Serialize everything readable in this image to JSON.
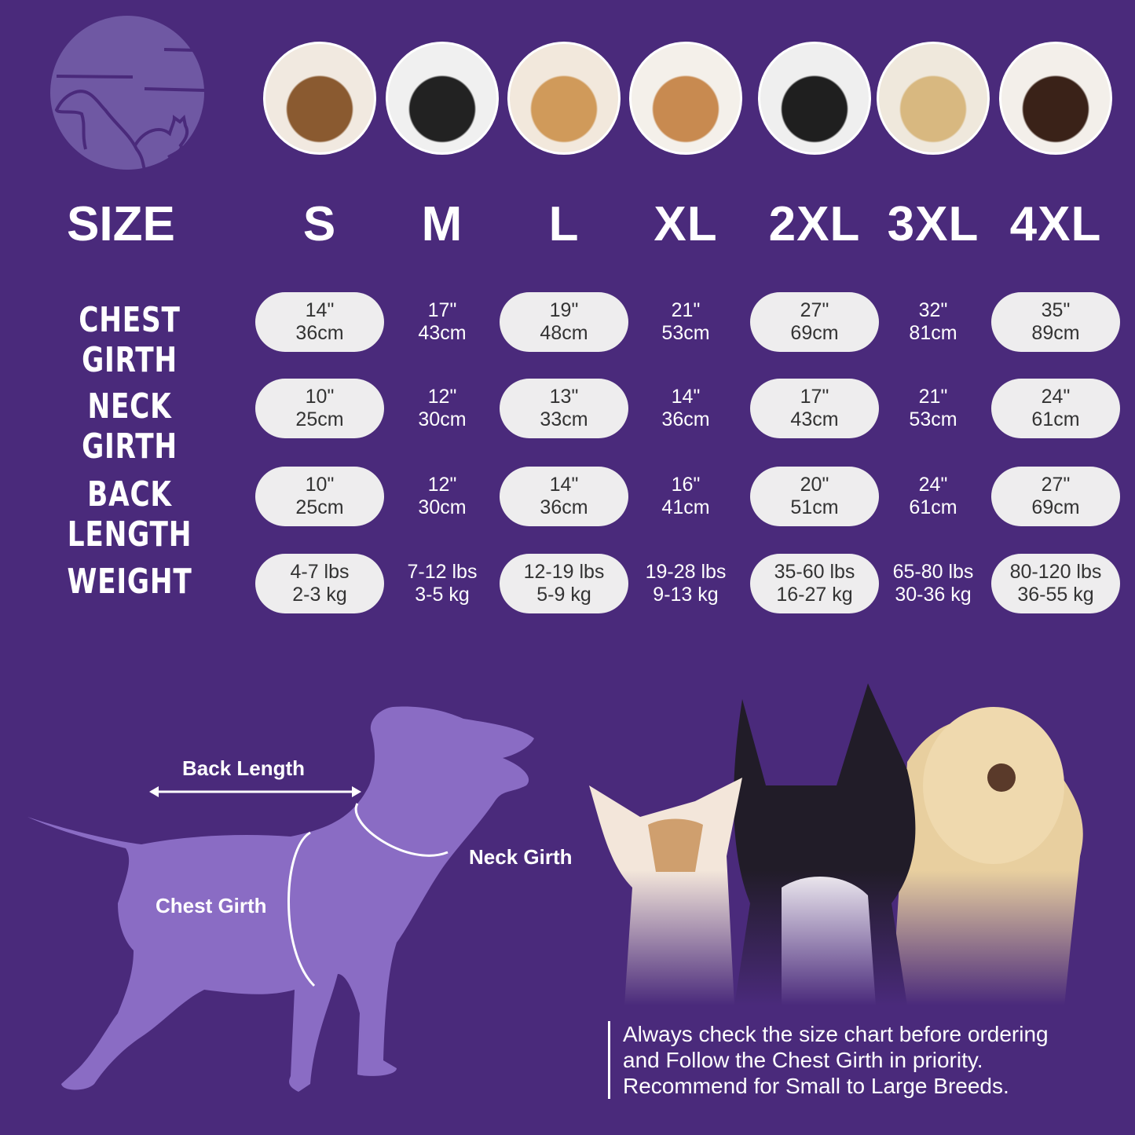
{
  "colors": {
    "background": "#4a2a7b",
    "pill": "#eeedee",
    "silhouette": "#8a6cc4",
    "logo": "#6f58a3"
  },
  "logo": {
    "icon": "dog-cat-outline-logo"
  },
  "header": {
    "size_label": "SIZE",
    "sizes": [
      "S",
      "M",
      "L",
      "XL",
      "2XL",
      "3XL",
      "4XL"
    ]
  },
  "breed_photos": [
    "shih-tzu",
    "boston-terrier",
    "cocker-spaniel",
    "beagle",
    "border-collie",
    "labrador",
    "doberman"
  ],
  "rows": [
    {
      "label": "CHEST GIRTH",
      "values": [
        [
          "14\"",
          "36cm"
        ],
        [
          "17\"",
          "43cm"
        ],
        [
          "19\"",
          "48cm"
        ],
        [
          "21\"",
          "53cm"
        ],
        [
          "27\"",
          "69cm"
        ],
        [
          "32\"",
          "81cm"
        ],
        [
          "35\"",
          "89cm"
        ]
      ]
    },
    {
      "label": "NECK GIRTH",
      "values": [
        [
          "10\"",
          "25cm"
        ],
        [
          "12\"",
          "30cm"
        ],
        [
          "13\"",
          "33cm"
        ],
        [
          "14\"",
          "36cm"
        ],
        [
          "17\"",
          "43cm"
        ],
        [
          "21\"",
          "53cm"
        ],
        [
          "24\"",
          "61cm"
        ]
      ]
    },
    {
      "label": "BACK LENGTH",
      "values": [
        [
          "10\"",
          "25cm"
        ],
        [
          "12\"",
          "30cm"
        ],
        [
          "14\"",
          "36cm"
        ],
        [
          "16\"",
          "41cm"
        ],
        [
          "20\"",
          "51cm"
        ],
        [
          "24\"",
          "61cm"
        ],
        [
          "27\"",
          "69cm"
        ]
      ]
    },
    {
      "label": "WEIGHT",
      "values": [
        [
          "4-7 lbs",
          "2-3 kg"
        ],
        [
          "7-12 lbs",
          "3-5 kg"
        ],
        [
          "12-19 lbs",
          "5-9 kg"
        ],
        [
          "19-28 lbs",
          "9-13 kg"
        ],
        [
          "35-60 lbs",
          "16-27 kg"
        ],
        [
          "65-80 lbs",
          "30-36 kg"
        ],
        [
          "80-120 lbs",
          "36-55 kg"
        ]
      ]
    }
  ],
  "diagram": {
    "back_length": "Back Length",
    "neck_girth": "Neck Girth",
    "chest_girth": "Chest Girth"
  },
  "note": {
    "line1": "Always check the size chart before ordering",
    "line2": "and Follow the Chest Girth in priority.",
    "line3": "Recommend for Small to Large Breeds."
  }
}
